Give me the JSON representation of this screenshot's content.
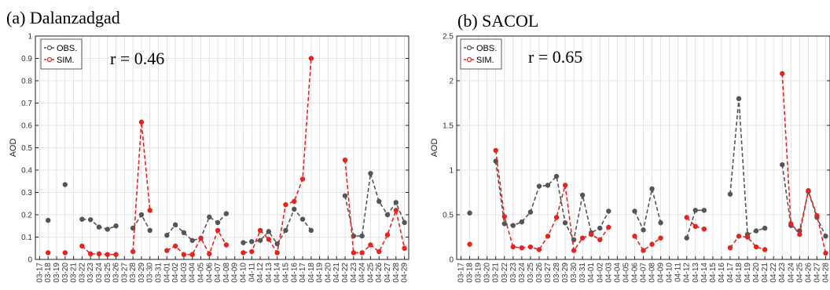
{
  "chart_data": [
    {
      "type": "line",
      "title": "(a) Dalanzadgad",
      "ylabel": "AOD",
      "ylim": [
        0,
        1
      ],
      "yticks": [
        "0",
        "0.1",
        "0.2",
        "0.3",
        "0.4",
        "0.5",
        "0.6",
        "0.7",
        "0.8",
        "0.9",
        "1"
      ],
      "annotation": "r = 0.46",
      "grid": true,
      "legend_position": "top-left",
      "categories": [
        "03-17",
        "03-18",
        "03-19",
        "03-20",
        "03-21",
        "03-22",
        "03-23",
        "03-24",
        "03-25",
        "03-26",
        "03-27",
        "03-28",
        "03-29",
        "03-30",
        "03-31",
        "04-01",
        "04-02",
        "04-03",
        "04-04",
        "04-05",
        "04-06",
        "04-07",
        "04-08",
        "04-09",
        "04-10",
        "04-11",
        "04-12",
        "04-13",
        "04-14",
        "04-15",
        "04-16",
        "04-17",
        "04-18",
        "04-19",
        "04-20",
        "04-21",
        "04-22",
        "04-23",
        "04-24",
        "04-25",
        "04-26",
        "04-27",
        "04-28",
        "04-29"
      ],
      "series": [
        {
          "name": "OBS.",
          "color": "#555555",
          "values": [
            null,
            0.175,
            null,
            0.335,
            null,
            0.18,
            0.178,
            0.145,
            0.135,
            0.15,
            null,
            0.14,
            0.2,
            0.13,
            null,
            0.108,
            0.155,
            0.12,
            0.085,
            0.095,
            0.19,
            0.165,
            0.205,
            null,
            0.075,
            0.08,
            0.085,
            0.125,
            0.07,
            0.13,
            0.225,
            0.18,
            0.13,
            null,
            null,
            null,
            0.285,
            0.105,
            0.105,
            0.385,
            0.26,
            0.2,
            0.255,
            0.165
          ]
        },
        {
          "name": "SIM.",
          "color": "#e8231f",
          "values": [
            null,
            0.03,
            null,
            0.03,
            null,
            0.06,
            0.025,
            0.025,
            0.022,
            0.022,
            null,
            0.035,
            0.615,
            0.22,
            null,
            0.04,
            0.06,
            0.022,
            0.022,
            0.095,
            0.025,
            0.13,
            0.065,
            null,
            0.03,
            0.035,
            0.13,
            0.09,
            0.03,
            0.245,
            0.26,
            0.36,
            0.9,
            null,
            null,
            null,
            0.445,
            0.03,
            0.03,
            0.065,
            0.035,
            0.11,
            0.22,
            0.05
          ]
        }
      ]
    },
    {
      "type": "line",
      "title": "(b) SACOL",
      "ylabel": "AOD",
      "ylim": [
        0,
        2.5
      ],
      "yticks": [
        "0",
        "0.5",
        "1",
        "1.5",
        "2",
        "2.5"
      ],
      "annotation": "r = 0.65",
      "grid": true,
      "legend_position": "top-left",
      "categories": [
        "03-17",
        "03-18",
        "03-19",
        "03-20",
        "03-21",
        "03-22",
        "03-23",
        "03-24",
        "03-25",
        "03-26",
        "03-27",
        "03-28",
        "03-29",
        "03-30",
        "03-31",
        "04-01",
        "04-02",
        "04-03",
        "04-04",
        "04-05",
        "04-06",
        "04-07",
        "04-08",
        "04-09",
        "04-10",
        "04-11",
        "04-12",
        "04-13",
        "04-14",
        "04-15",
        "04-16",
        "04-17",
        "04-18",
        "04-19",
        "04-20",
        "04-21",
        "04-22",
        "04-23",
        "04-24",
        "04-25",
        "04-26",
        "04-27",
        "04-28"
      ],
      "series": [
        {
          "name": "OBS.",
          "color": "#555555",
          "values": [
            null,
            0.52,
            null,
            null,
            1.1,
            0.4,
            0.38,
            0.42,
            0.53,
            0.82,
            0.83,
            0.93,
            0.41,
            0.22,
            0.72,
            0.3,
            0.35,
            0.54,
            null,
            null,
            0.54,
            0.33,
            0.79,
            0.41,
            null,
            null,
            0.24,
            0.55,
            0.55,
            null,
            null,
            0.73,
            1.8,
            0.28,
            0.32,
            0.35,
            null,
            1.06,
            0.38,
            0.32,
            0.76,
            0.47,
            0.26
          ]
        },
        {
          "name": "SIM.",
          "color": "#e8231f",
          "values": [
            null,
            0.17,
            null,
            null,
            1.22,
            0.48,
            0.14,
            0.13,
            0.14,
            0.11,
            0.26,
            0.47,
            0.83,
            0.1,
            0.24,
            0.28,
            0.22,
            0.36,
            null,
            null,
            0.26,
            0.1,
            0.17,
            0.24,
            null,
            null,
            0.47,
            0.37,
            0.34,
            null,
            null,
            0.13,
            0.26,
            0.25,
            0.14,
            0.11,
            null,
            2.08,
            0.4,
            0.28,
            0.77,
            0.49,
            0.07
          ]
        }
      ]
    }
  ]
}
